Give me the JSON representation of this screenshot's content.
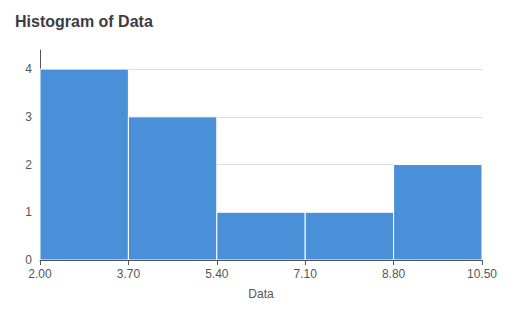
{
  "chart_data": {
    "type": "histogram",
    "title": "Histogram of Data",
    "xlabel": "Data",
    "bins": [
      2.0,
      3.7,
      5.4,
      7.1,
      8.8,
      10.5
    ],
    "counts": [
      4,
      3,
      1,
      1,
      2
    ],
    "color": "#4A90D9",
    "xlim": [
      2.0,
      10.5
    ],
    "xticks": [
      {
        "value": 2.0,
        "label": "2.00"
      },
      {
        "value": 3.7,
        "label": "3.70"
      },
      {
        "value": 5.4,
        "label": "5.40"
      },
      {
        "value": 7.1,
        "label": "7.10"
      },
      {
        "value": 8.8,
        "label": "8.80"
      },
      {
        "value": 10.5,
        "label": "10.50"
      }
    ],
    "ylim": [
      0,
      4.4
    ],
    "yticks": [
      0,
      1,
      2,
      3,
      4
    ],
    "grid": true
  }
}
